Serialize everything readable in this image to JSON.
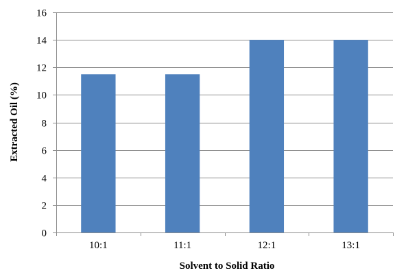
{
  "chart_data": {
    "type": "bar",
    "categories": [
      "10:1",
      "11:1",
      "12:1",
      "13:1"
    ],
    "values": [
      11.5,
      11.5,
      14,
      14
    ],
    "title": "",
    "xlabel": "Solvent to Solid Ratio",
    "ylabel": "Extracted Oil (%)",
    "ylim": [
      0,
      16
    ],
    "yticks": [
      0,
      2,
      4,
      6,
      8,
      10,
      12,
      14,
      16
    ],
    "grid": true,
    "legend": "none",
    "bar_color": "#4f81bd",
    "grid_color": "#8c8c8c",
    "axis_color": "#8c8c8c"
  }
}
